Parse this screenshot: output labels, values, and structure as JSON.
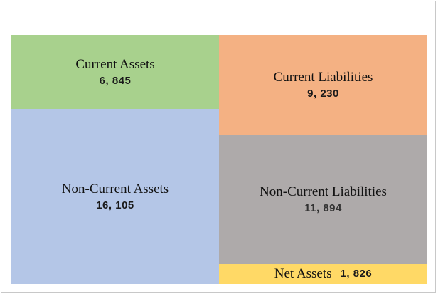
{
  "chart_data": {
    "type": "treemap",
    "title": "",
    "unit": "",
    "groups": [
      {
        "name": "assets",
        "items": [
          {
            "label": "Current Assets",
            "value_label": "6, 845",
            "value": 6845,
            "color": "#a8d18d"
          },
          {
            "label": "Non-Current Assets",
            "value_label": "16, 105",
            "value": 16105,
            "color": "#b4c6e7"
          }
        ]
      },
      {
        "name": "liabilities-and-net-assets",
        "items": [
          {
            "label": "Current Liabilities",
            "value_label": "9, 230",
            "value": 9230,
            "color": "#f4b183"
          },
          {
            "label": "Non-Current Liabilities",
            "value_label": "11, 894",
            "value": 11894,
            "color": "#aeaaaa"
          },
          {
            "label": "Net Assets",
            "value_label": "1, 826",
            "value": 1826,
            "color": "#ffd966"
          }
        ]
      }
    ]
  }
}
